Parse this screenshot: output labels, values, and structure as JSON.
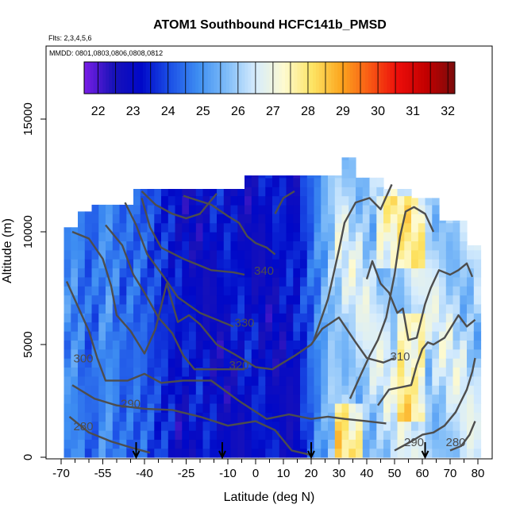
{
  "chart_data": {
    "type": "heatmap",
    "title": "ATOM1 Southbound HCFC141b_PMSD",
    "flights_note": "Flts: 2,3,4,5,6",
    "dates_note": "MMDD: 0801,0803,0806,0808,0812",
    "xlabel": "Latitude (deg N)",
    "ylabel": "Altitude (m)",
    "xlim": [
      -70,
      80
    ],
    "ylim": [
      0,
      17500
    ],
    "x_ticks": [
      -70,
      -55,
      -40,
      -25,
      -10,
      0,
      10,
      20,
      30,
      40,
      50,
      60,
      70,
      80
    ],
    "x_minor_step": 5,
    "y_ticks": [
      0,
      5000,
      10000,
      15000
    ],
    "colorbar": {
      "min": 21.6,
      "max": 32.2,
      "ticks": [
        22,
        23,
        24,
        25,
        26,
        27,
        28,
        29,
        30,
        31,
        32
      ],
      "colors": [
        "#7a1ee6",
        "#1a12b8",
        "#0008c8",
        "#1b4fe6",
        "#3e8ef2",
        "#7fbcf8",
        "#d6ecfd",
        "#fdfad0",
        "#fde464",
        "#fca71f",
        "#f95a14",
        "#ec0d0a",
        "#c20000",
        "#7b0c0c"
      ]
    },
    "arrows_lat": [
      -43,
      -12,
      20,
      61
    ],
    "contours": [
      {
        "label": "280",
        "label_at": [
          -62,
          1200
        ],
        "points": [
          [
            -67,
            1800
          ],
          [
            -60,
            1100
          ],
          [
            -52,
            700
          ],
          [
            -44,
            400
          ],
          [
            -38,
            200
          ]
        ]
      },
      {
        "label": "290",
        "label_at": [
          -45,
          2200
        ],
        "points": [
          [
            -66,
            3200
          ],
          [
            -58,
            2600
          ],
          [
            -50,
            2300
          ],
          [
            -40,
            2150
          ],
          [
            -30,
            2100
          ],
          [
            -20,
            1800
          ],
          [
            -10,
            1400
          ],
          [
            0,
            1600
          ],
          [
            7,
            1200
          ],
          [
            13,
            300
          ],
          [
            20,
            100
          ]
        ]
      },
      {
        "label": "300",
        "label_at": [
          -62,
          4200
        ],
        "points": [
          [
            -68,
            7800
          ],
          [
            -64,
            6700
          ],
          [
            -60,
            5600
          ],
          [
            -57,
            4400
          ],
          [
            -54,
            3400
          ],
          [
            -46,
            3400
          ],
          [
            -40,
            3700
          ],
          [
            -34,
            3300
          ],
          [
            -26,
            3400
          ],
          [
            -16,
            3400
          ],
          [
            -6,
            2500
          ],
          [
            4,
            1700
          ],
          [
            12,
            1900
          ],
          [
            20,
            1700
          ],
          [
            26,
            1800
          ],
          [
            32,
            1700
          ],
          [
            40,
            1600
          ],
          [
            47,
            1500
          ]
        ]
      },
      {
        "label": "310",
        "label_at": [
          52,
          4300
        ],
        "points": [
          [
            -66,
            10000
          ],
          [
            -60,
            9700
          ],
          [
            -55,
            8800
          ],
          [
            -52,
            7600
          ],
          [
            -50,
            6300
          ],
          [
            -45,
            5600
          ],
          [
            -40,
            4600
          ],
          [
            -36,
            5700
          ],
          [
            -32,
            7700
          ],
          [
            -28,
            6000
          ],
          [
            -24,
            6300
          ],
          [
            -20,
            5900
          ],
          [
            -14,
            5000
          ],
          [
            -8,
            4600
          ],
          [
            0,
            4000
          ],
          [
            6,
            3900
          ],
          [
            10,
            4200
          ],
          [
            14,
            4500
          ],
          [
            20,
            5000
          ],
          [
            24,
            5700
          ],
          [
            30,
            6200
          ],
          [
            36,
            5100
          ],
          [
            40,
            4400
          ],
          [
            46,
            4200
          ],
          [
            50,
            4400
          ]
        ]
      },
      {
        "label": "320",
        "label_at": [
          -6,
          3900
        ],
        "points": [
          [
            -54,
            10300
          ],
          [
            -48,
            9400
          ],
          [
            -44,
            8100
          ],
          [
            -40,
            7300
          ],
          [
            -35,
            6200
          ],
          [
            -30,
            5500
          ],
          [
            -26,
            4500
          ],
          [
            -22,
            3900
          ],
          [
            -16,
            3900
          ],
          [
            -10,
            3900
          ],
          [
            -4,
            3900
          ]
        ]
      },
      {
        "label": "330",
        "label_at": [
          -4,
          5800
        ],
        "points": [
          [
            -47,
            11300
          ],
          [
            -43,
            10300
          ],
          [
            -39,
            9000
          ],
          [
            -33,
            8000
          ],
          [
            -28,
            7100
          ],
          [
            -20,
            6400
          ],
          [
            -12,
            6000
          ],
          [
            -8,
            5800
          ]
        ]
      },
      {
        "label": "340",
        "label_at": [
          3,
          8100
        ],
        "points": [
          [
            -41,
            11500
          ],
          [
            -38,
            10200
          ],
          [
            -34,
            9300
          ],
          [
            -26,
            8800
          ],
          [
            -16,
            8300
          ],
          [
            -8,
            8200
          ],
          [
            -4,
            8100
          ]
        ]
      },
      {
        "label": "",
        "label_at": null,
        "points": [
          [
            -41,
            11800
          ],
          [
            -36,
            11200
          ],
          [
            -30,
            10800
          ],
          [
            -25,
            10600
          ],
          [
            -20,
            10800
          ],
          [
            -14,
            11700
          ]
        ]
      },
      {
        "label": "",
        "label_at": null,
        "points": [
          [
            -26,
            11600
          ],
          [
            -16,
            11200
          ],
          [
            -10,
            10700
          ],
          [
            -6,
            10400
          ],
          [
            -3,
            9800
          ],
          [
            0,
            9500
          ],
          [
            4,
            9300
          ],
          [
            7,
            9000
          ]
        ]
      },
      {
        "label": "",
        "label_at": null,
        "points": [
          [
            7,
            10800
          ],
          [
            10,
            11500
          ],
          [
            14,
            11800
          ]
        ]
      },
      {
        "label": "",
        "label_at": null,
        "points": [
          [
            21,
            5200
          ],
          [
            26,
            7000
          ],
          [
            30,
            9200
          ],
          [
            32,
            10400
          ],
          [
            36,
            11300
          ],
          [
            41,
            11500
          ],
          [
            45,
            11000
          ],
          [
            49,
            12100
          ]
        ]
      },
      {
        "label": "",
        "label_at": null,
        "points": [
          [
            34,
            2600
          ],
          [
            38,
            3700
          ],
          [
            41,
            4500
          ],
          [
            44,
            5200
          ],
          [
            47,
            6200
          ],
          [
            50,
            8100
          ],
          [
            52,
            9800
          ],
          [
            54,
            10900
          ],
          [
            57,
            11100
          ],
          [
            61,
            10800
          ],
          [
            64,
            10000
          ]
        ]
      },
      {
        "label": "",
        "label_at": null,
        "points": [
          [
            40,
            7900
          ],
          [
            42,
            8700
          ],
          [
            45,
            7700
          ],
          [
            48,
            7300
          ],
          [
            51,
            6400
          ],
          [
            53,
            6600
          ],
          [
            55,
            5200
          ],
          [
            58,
            5300
          ],
          [
            61,
            6800
          ],
          [
            63,
            7500
          ],
          [
            66,
            8300
          ],
          [
            70,
            8100
          ],
          [
            73,
            8300
          ],
          [
            76,
            8600
          ],
          [
            78,
            8000
          ]
        ]
      },
      {
        "label": "",
        "label_at": null,
        "points": [
          [
            44,
            2300
          ],
          [
            48,
            3000
          ],
          [
            52,
            3100
          ],
          [
            56,
            3200
          ],
          [
            58,
            4100
          ],
          [
            60,
            4800
          ],
          [
            62,
            5100
          ],
          [
            64,
            5000
          ],
          [
            68,
            5300
          ],
          [
            73,
            6300
          ],
          [
            76,
            5800
          ],
          [
            79,
            6100
          ]
        ]
      },
      {
        "label": "290",
        "label_at": [
          57,
          500
        ],
        "points": [
          [
            50,
            300
          ],
          [
            53,
            500
          ],
          [
            56,
            700
          ],
          [
            60,
            1000
          ],
          [
            64,
            1100
          ],
          [
            68,
            1400
          ],
          [
            72,
            2000
          ],
          [
            76,
            3000
          ],
          [
            78,
            3800
          ],
          [
            79,
            4400
          ]
        ]
      },
      {
        "label": "280",
        "label_at": [
          72,
          500
        ],
        "points": [
          [
            70,
            300
          ],
          [
            74,
            500
          ],
          [
            77,
            1000
          ],
          [
            79,
            1600
          ]
        ]
      }
    ]
  }
}
